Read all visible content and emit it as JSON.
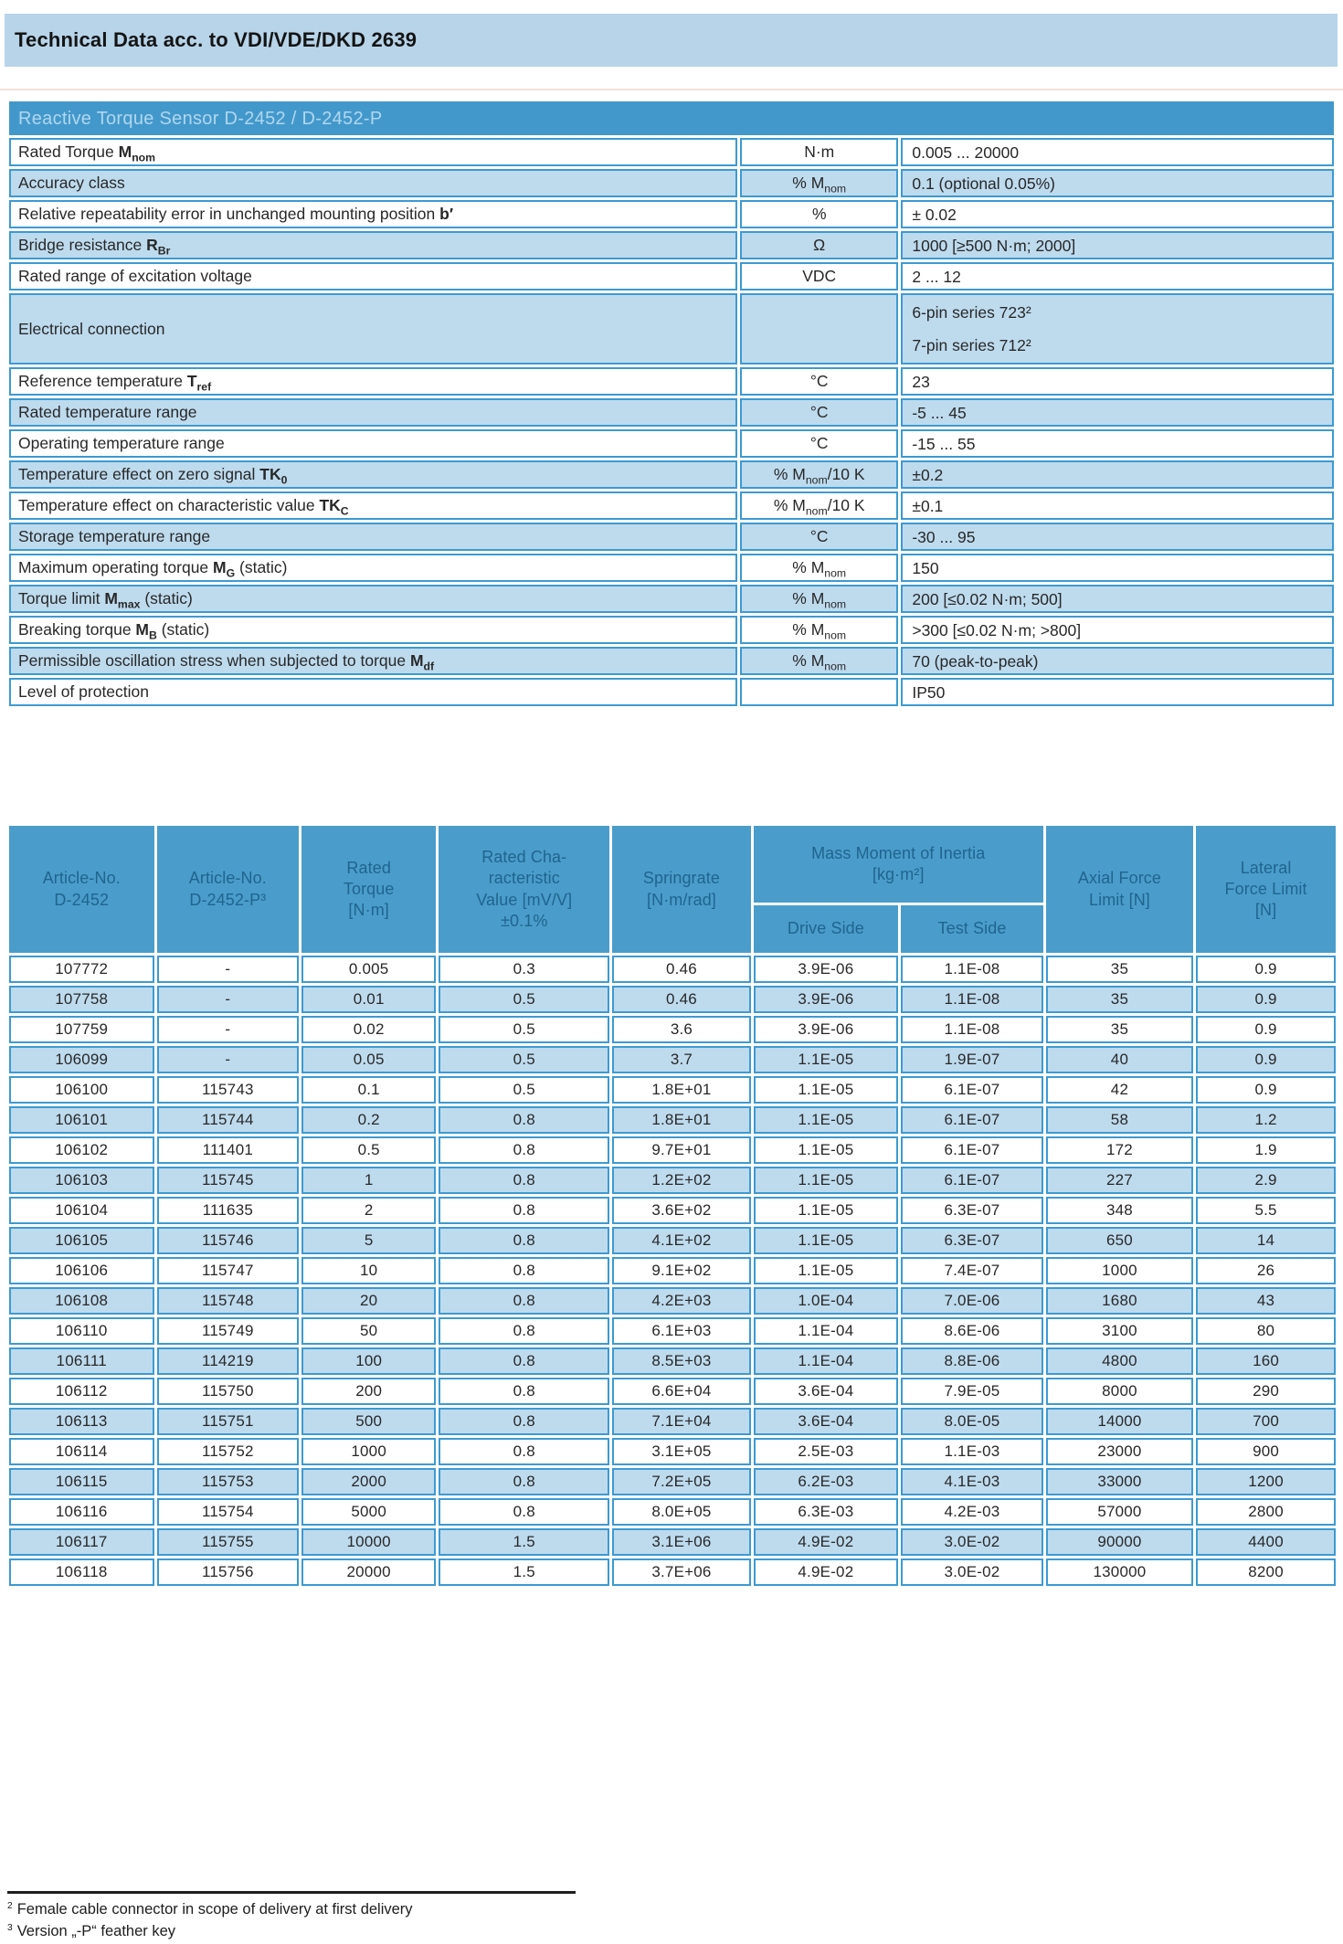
{
  "banner": {
    "title": "Technical Data acc. to VDI/VDE/DKD 2639"
  },
  "colors": {
    "banner_bg": "#b7d4e9",
    "table_header_bg": "#4398cb",
    "header_text_light": "#b0d7ee",
    "header_text_dark": "#20648f",
    "row_alt_bg": "#bedbee",
    "cell_border": "#3d9ad1",
    "body_text": "#282828"
  },
  "spec_table": {
    "title": "Reactive Torque Sensor D-2452 / D-2452-P",
    "rows": [
      {
        "label": [
          {
            "t": "Rated Torque "
          },
          {
            "t": "M",
            "b": true
          },
          {
            "t": "nom",
            "b": true,
            "sub": true
          }
        ],
        "unit": [
          {
            "t": "N·m"
          }
        ],
        "values": [
          "0.005 ... 20000"
        ]
      },
      {
        "label": [
          {
            "t": "Accuracy class"
          }
        ],
        "unit": [
          {
            "t": "% M"
          },
          {
            "t": "nom",
            "sub": true
          }
        ],
        "values": [
          "0.1 (optional 0.05%)"
        ]
      },
      {
        "label": [
          {
            "t": "Relative repeatability error in unchanged mounting position "
          },
          {
            "t": "b′",
            "b": true
          }
        ],
        "unit": [
          {
            "t": "%"
          }
        ],
        "values": [
          "± 0.02"
        ]
      },
      {
        "label": [
          {
            "t": "Bridge resistance "
          },
          {
            "t": "R",
            "b": true
          },
          {
            "t": "Br",
            "b": true,
            "sub": true
          }
        ],
        "unit": [
          {
            "t": "Ω"
          }
        ],
        "values": [
          "1000 [≥500 N·m; 2000]"
        ]
      },
      {
        "label": [
          {
            "t": "Rated range of excitation voltage"
          }
        ],
        "unit": [
          {
            "t": "VDC"
          }
        ],
        "values": [
          "2 ... 12"
        ]
      },
      {
        "label": [
          {
            "t": "Electrical connection"
          }
        ],
        "unit": [],
        "values": [
          "6-pin series 723²",
          "7-pin series 712²"
        ],
        "tall": true
      },
      {
        "label": [
          {
            "t": "Reference temperature "
          },
          {
            "t": "T",
            "b": true
          },
          {
            "t": "ref",
            "b": true,
            "sub": true
          }
        ],
        "unit": [
          {
            "t": "°C"
          }
        ],
        "values": [
          "23"
        ]
      },
      {
        "label": [
          {
            "t": "Rated temperature range"
          }
        ],
        "unit": [
          {
            "t": "°C"
          }
        ],
        "values": [
          "-5 ... 45"
        ]
      },
      {
        "label": [
          {
            "t": "Operating temperature range"
          }
        ],
        "unit": [
          {
            "t": "°C"
          }
        ],
        "values": [
          "-15 ... 55"
        ]
      },
      {
        "label": [
          {
            "t": "Temperature effect on zero signal "
          },
          {
            "t": "TK",
            "b": true
          },
          {
            "t": "0",
            "b": true,
            "sub": true
          }
        ],
        "unit": [
          {
            "t": "% M"
          },
          {
            "t": "nom",
            "sub": true
          },
          {
            "t": "/10 K"
          }
        ],
        "values": [
          "±0.2"
        ]
      },
      {
        "label": [
          {
            "t": "Temperature effect on characteristic value "
          },
          {
            "t": "TK",
            "b": true
          },
          {
            "t": "C",
            "b": true,
            "sub": true
          }
        ],
        "unit": [
          {
            "t": "% M"
          },
          {
            "t": "nom",
            "sub": true
          },
          {
            "t": "/10 K"
          }
        ],
        "values": [
          "±0.1"
        ]
      },
      {
        "label": [
          {
            "t": "Storage temperature range"
          }
        ],
        "unit": [
          {
            "t": "°C"
          }
        ],
        "values": [
          "-30 ... 95"
        ]
      },
      {
        "label": [
          {
            "t": "Maximum operating torque "
          },
          {
            "t": "M",
            "b": true
          },
          {
            "t": "G",
            "b": true,
            "sub": true
          },
          {
            "t": " (static)"
          }
        ],
        "unit": [
          {
            "t": "% M"
          },
          {
            "t": "nom",
            "sub": true
          }
        ],
        "values": [
          "150"
        ]
      },
      {
        "label": [
          {
            "t": "Torque limit "
          },
          {
            "t": "M",
            "b": true
          },
          {
            "t": "max",
            "b": true,
            "sub": true
          },
          {
            "t": " (static)"
          }
        ],
        "unit": [
          {
            "t": "% M"
          },
          {
            "t": "nom",
            "sub": true
          }
        ],
        "values": [
          "200 [≤0.02 N·m; 500]"
        ]
      },
      {
        "label": [
          {
            "t": "Breaking torque "
          },
          {
            "t": "M",
            "b": true
          },
          {
            "t": "B",
            "b": true,
            "sub": true
          },
          {
            "t": " (static)"
          }
        ],
        "unit": [
          {
            "t": "% M"
          },
          {
            "t": "nom",
            "sub": true
          }
        ],
        "values": [
          ">300 [≤0.02 N·m; >800]"
        ]
      },
      {
        "label": [
          {
            "t": "Permissible oscillation stress when subjected to torque "
          },
          {
            "t": "M",
            "b": true
          },
          {
            "t": "df",
            "b": true,
            "sub": true
          }
        ],
        "unit": [
          {
            "t": "% M"
          },
          {
            "t": "nom",
            "sub": true
          }
        ],
        "values": [
          "70 (peak-to-peak)"
        ]
      },
      {
        "label": [
          {
            "t": "Level of protection"
          }
        ],
        "unit": [],
        "values": [
          "IP50"
        ]
      }
    ]
  },
  "data_table": {
    "head": {
      "article_d2452": "Article-No.\nD-2452",
      "article_d2452p": "Article-No.\nD-2452-P³",
      "rated_torque": "Rated\nTorque\n[N·m]",
      "rated_char": "Rated Cha-\nracteristic\nValue [mV/V]\n±0.1%",
      "springrate": "Springrate\n[N·m/rad]",
      "inertia_title": "Mass Moment of Inertia\n[kg·m²]",
      "drive_side": "Drive Side",
      "test_side": "Test Side",
      "axial": "Axial Force\nLimit [N]",
      "lateral": "Lateral\nForce Limit\n[N]"
    },
    "rows": [
      [
        "107772",
        "-",
        "0.005",
        "0.3",
        "0.46",
        "3.9E-06",
        "1.1E-08",
        "35",
        "0.9"
      ],
      [
        "107758",
        "-",
        "0.01",
        "0.5",
        "0.46",
        "3.9E-06",
        "1.1E-08",
        "35",
        "0.9"
      ],
      [
        "107759",
        "-",
        "0.02",
        "0.5",
        "3.6",
        "3.9E-06",
        "1.1E-08",
        "35",
        "0.9"
      ],
      [
        "106099",
        "-",
        "0.05",
        "0.5",
        "3.7",
        "1.1E-05",
        "1.9E-07",
        "40",
        "0.9"
      ],
      [
        "106100",
        "115743",
        "0.1",
        "0.5",
        "1.8E+01",
        "1.1E-05",
        "6.1E-07",
        "42",
        "0.9"
      ],
      [
        "106101",
        "115744",
        "0.2",
        "0.8",
        "1.8E+01",
        "1.1E-05",
        "6.1E-07",
        "58",
        "1.2"
      ],
      [
        "106102",
        "111401",
        "0.5",
        "0.8",
        "9.7E+01",
        "1.1E-05",
        "6.1E-07",
        "172",
        "1.9"
      ],
      [
        "106103",
        "115745",
        "1",
        "0.8",
        "1.2E+02",
        "1.1E-05",
        "6.1E-07",
        "227",
        "2.9"
      ],
      [
        "106104",
        "111635",
        "2",
        "0.8",
        "3.6E+02",
        "1.1E-05",
        "6.3E-07",
        "348",
        "5.5"
      ],
      [
        "106105",
        "115746",
        "5",
        "0.8",
        "4.1E+02",
        "1.1E-05",
        "6.3E-07",
        "650",
        "14"
      ],
      [
        "106106",
        "115747",
        "10",
        "0.8",
        "9.1E+02",
        "1.1E-05",
        "7.4E-07",
        "1000",
        "26"
      ],
      [
        "106108",
        "115748",
        "20",
        "0.8",
        "4.2E+03",
        "1.0E-04",
        "7.0E-06",
        "1680",
        "43"
      ],
      [
        "106110",
        "115749",
        "50",
        "0.8",
        "6.1E+03",
        "1.1E-04",
        "8.6E-06",
        "3100",
        "80"
      ],
      [
        "106111",
        "114219",
        "100",
        "0.8",
        "8.5E+03",
        "1.1E-04",
        "8.8E-06",
        "4800",
        "160"
      ],
      [
        "106112",
        "115750",
        "200",
        "0.8",
        "6.6E+04",
        "3.6E-04",
        "7.9E-05",
        "8000",
        "290"
      ],
      [
        "106113",
        "115751",
        "500",
        "0.8",
        "7.1E+04",
        "3.6E-04",
        "8.0E-05",
        "14000",
        "700"
      ],
      [
        "106114",
        "115752",
        "1000",
        "0.8",
        "3.1E+05",
        "2.5E-03",
        "1.1E-03",
        "23000",
        "900"
      ],
      [
        "106115",
        "115753",
        "2000",
        "0.8",
        "7.2E+05",
        "6.2E-03",
        "4.1E-03",
        "33000",
        "1200"
      ],
      [
        "106116",
        "115754",
        "5000",
        "0.8",
        "8.0E+05",
        "6.3E-03",
        "4.2E-03",
        "57000",
        "2800"
      ],
      [
        "106117",
        "115755",
        "10000",
        "1.5",
        "3.1E+06",
        "4.9E-02",
        "3.0E-02",
        "90000",
        "4400"
      ],
      [
        "106118",
        "115756",
        "20000",
        "1.5",
        "3.7E+06",
        "4.9E-02",
        "3.0E-02",
        "130000",
        "8200"
      ]
    ]
  },
  "footnotes": [
    {
      "marker": "2",
      "text": "Female cable connector in scope of delivery at first delivery"
    },
    {
      "marker": "3",
      "text": "Version „-P“ feather key"
    }
  ]
}
